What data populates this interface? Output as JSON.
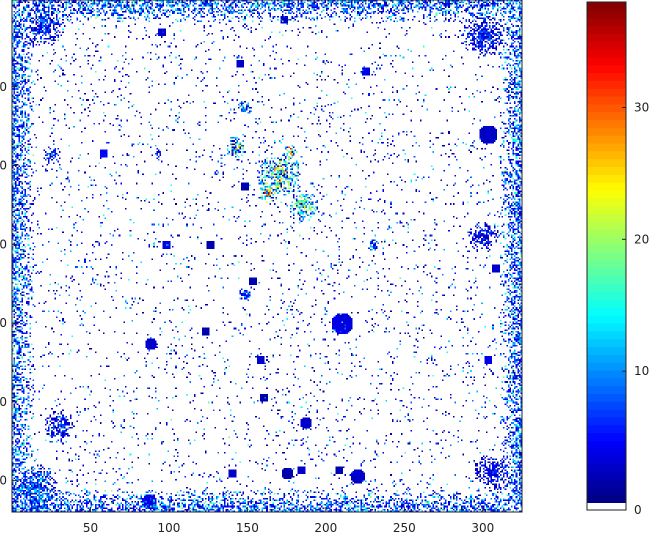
{
  "chart_data": {
    "type": "heatmap",
    "title": "",
    "xlabel": "",
    "ylabel": "",
    "xlim": [
      0,
      325
    ],
    "ylim": [
      0,
      325
    ],
    "x_ticks": [
      50,
      100,
      150,
      200,
      250,
      300
    ],
    "x_tick_labels": [
      "50",
      "100",
      "150",
      "200",
      "250",
      "300"
    ],
    "y_ticks": [
      50,
      100,
      150,
      200,
      250,
      300
    ],
    "y_tick_labels": [
      "0",
      "0",
      "0",
      "0",
      "0",
      "0"
    ],
    "colorbar": {
      "colormap": "jet",
      "range": [
        0,
        38
      ],
      "ticks": [
        0,
        10,
        20,
        30
      ],
      "tick_labels": [
        "0",
        "10",
        "20",
        "30"
      ],
      "zero_color": "#ffffff"
    },
    "background_value": 0,
    "border_band": {
      "width": 14,
      "level": 6
    },
    "hotspots": [
      {
        "x": 20,
        "y": 15,
        "r": 14,
        "level": 9
      },
      {
        "x": 15,
        "y": 310,
        "r": 16,
        "level": 12
      },
      {
        "x": 300,
        "y": 22,
        "r": 14,
        "level": 8
      },
      {
        "x": 170,
        "y": 110,
        "r": 14,
        "level": 27
      },
      {
        "x": 185,
        "y": 130,
        "r": 10,
        "level": 24
      },
      {
        "x": 163,
        "y": 122,
        "r": 7,
        "level": 33
      },
      {
        "x": 177,
        "y": 96,
        "r": 5,
        "level": 36
      },
      {
        "x": 142,
        "y": 93,
        "r": 7,
        "level": 26
      },
      {
        "x": 148,
        "y": 68,
        "r": 5,
        "level": 16
      },
      {
        "x": 148,
        "y": 187,
        "r": 5,
        "level": 14
      },
      {
        "x": 230,
        "y": 155,
        "r": 4,
        "level": 15
      },
      {
        "x": 92,
        "y": 97,
        "r": 4,
        "level": 7
      },
      {
        "x": 25,
        "y": 98,
        "r": 6,
        "level": 10
      },
      {
        "x": 305,
        "y": 300,
        "r": 12,
        "level": 6
      },
      {
        "x": 30,
        "y": 270,
        "r": 10,
        "level": 8
      },
      {
        "x": 300,
        "y": 150,
        "r": 10,
        "level": 7
      }
    ],
    "blobs": [
      {
        "x": 210,
        "y": 205,
        "r": 7,
        "level": 3
      },
      {
        "x": 303,
        "y": 85,
        "r": 6,
        "level": 2
      },
      {
        "x": 88,
        "y": 218,
        "r": 4,
        "level": 2
      },
      {
        "x": 87,
        "y": 318,
        "r": 5,
        "level": 3
      },
      {
        "x": 126,
        "y": 155,
        "r": 3,
        "level": 1
      },
      {
        "x": 148,
        "y": 118,
        "r": 3,
        "level": 1
      },
      {
        "x": 153,
        "y": 178,
        "r": 3,
        "level": 1
      },
      {
        "x": 158,
        "y": 228,
        "r": 3,
        "level": 2
      },
      {
        "x": 123,
        "y": 210,
        "r": 3,
        "level": 1
      },
      {
        "x": 160,
        "y": 252,
        "r": 3,
        "level": 1
      },
      {
        "x": 187,
        "y": 268,
        "r": 4,
        "level": 2
      },
      {
        "x": 184,
        "y": 298,
        "r": 3,
        "level": 2
      },
      {
        "x": 208,
        "y": 298,
        "r": 3,
        "level": 1
      },
      {
        "x": 220,
        "y": 302,
        "r": 5,
        "level": 2
      },
      {
        "x": 175,
        "y": 300,
        "r": 4,
        "level": 1
      },
      {
        "x": 145,
        "y": 40,
        "r": 3,
        "level": 2
      },
      {
        "x": 98,
        "y": 155,
        "r": 3,
        "level": 3
      },
      {
        "x": 58,
        "y": 97,
        "r": 3,
        "level": 4
      },
      {
        "x": 225,
        "y": 45,
        "r": 3,
        "level": 3
      },
      {
        "x": 140,
        "y": 300,
        "r": 3,
        "level": 2
      },
      {
        "x": 303,
        "y": 228,
        "r": 3,
        "level": 3
      },
      {
        "x": 308,
        "y": 170,
        "r": 3,
        "level": 2
      },
      {
        "x": 95,
        "y": 20,
        "r": 3,
        "level": 2
      },
      {
        "x": 173,
        "y": 12,
        "r": 3,
        "level": 2
      }
    ]
  }
}
